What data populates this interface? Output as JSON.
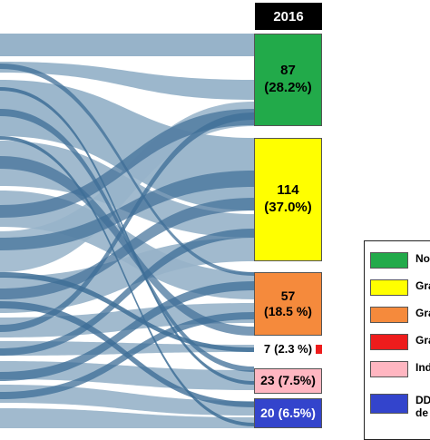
{
  "header": {
    "title": "2016"
  },
  "nodes": [
    {
      "id": "no",
      "value": "87",
      "percent": "(28.2%)",
      "inline": false,
      "color": "#22aa4a"
    },
    {
      "id": "g1",
      "value": "114",
      "percent": "(37.0%)",
      "inline": false,
      "color": "#ffff00"
    },
    {
      "id": "g2",
      "value": "57",
      "percent": "(18.5 %)",
      "inline": false,
      "color": "#f58a3c"
    },
    {
      "id": "g3",
      "value": "7",
      "percent": "(2.3 %)",
      "inline": true,
      "color": "#ee1c1c"
    },
    {
      "id": "ind",
      "value": "23",
      "percent": "(7.5%)",
      "inline": true,
      "color": "#ffb6c1"
    },
    {
      "id": "dd",
      "value": "20",
      "percent": "(6.5%)",
      "inline": true,
      "color": "#3344cc"
    }
  ],
  "legend": [
    {
      "label": "No",
      "color": "#22aa4a"
    },
    {
      "label": "Gra",
      "color": "#ffff00"
    },
    {
      "label": "Gra",
      "color": "#f58a3c"
    },
    {
      "label": "Gra",
      "color": "#ee1c1c"
    },
    {
      "label": "Ind",
      "color": "#ffb6c1"
    },
    {
      "label": "DD\nde",
      "color": "#3344cc"
    }
  ],
  "flow_colors": {
    "light": "#97b3c9",
    "dark": "#3e6e97"
  }
}
